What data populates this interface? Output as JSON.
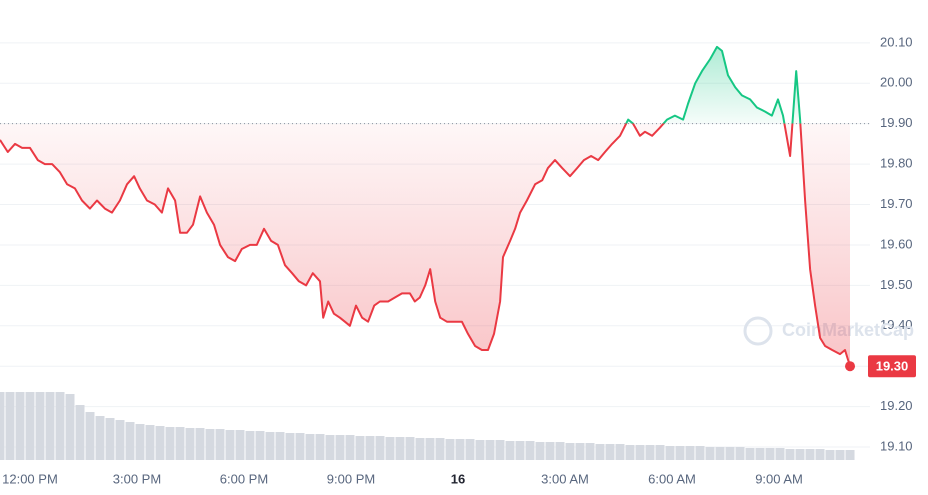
{
  "chart_data": {
    "type": "line",
    "x": [
      -0.84,
      -0.62,
      -0.42,
      -0.22,
      0,
      0.22,
      0.42,
      0.62,
      0.84,
      1.04,
      1.26,
      1.46,
      1.68,
      1.88,
      2.1,
      2.3,
      2.52,
      2.72,
      2.92,
      3.08,
      3.28,
      3.5,
      3.7,
      3.87,
      4.07,
      4.21,
      4.4,
      4.57,
      4.77,
      4.96,
      5.16,
      5.33,
      5.55,
      5.75,
      5.94,
      6.17,
      6.36,
      6.56,
      6.76,
      6.95,
      7.15,
      7.35,
      7.54,
      7.74,
      7.93,
      8.13,
      8.22,
      8.36,
      8.52,
      8.69,
      8.83,
      8.97,
      9.14,
      9.31,
      9.48,
      9.65,
      9.81,
      10.04,
      10.23,
      10.43,
      10.65,
      10.79,
      10.93,
      11.08,
      11.22,
      11.36,
      11.5,
      11.69,
      11.92,
      12.11,
      12.28,
      12.48,
      12.67,
      12.84,
      13.01,
      13.18,
      13.26,
      13.46,
      13.6,
      13.74,
      13.93,
      14.16,
      14.36,
      14.52,
      14.72,
      14.92,
      15.14,
      15.34,
      15.53,
      15.73,
      15.93,
      16.12,
      16.32,
      16.54,
      16.77,
      16.91,
      17.1,
      17.24,
      17.44,
      17.66,
      17.86,
      18.08,
      18.31,
      18.45,
      18.65,
      18.84,
      19.07,
      19.26,
      19.4,
      19.57,
      19.77,
      19.96,
      20.19,
      20.38,
      20.61,
      20.8,
      20.97,
      21.11,
      21.31,
      21.48,
      21.59,
      21.73,
      21.87,
      22.01,
      22.15,
      22.29,
      22.49,
      22.71,
      22.85,
      22.99
    ],
    "values": [
      19.86,
      19.83,
      19.85,
      19.84,
      19.84,
      19.81,
      19.8,
      19.8,
      19.78,
      19.75,
      19.74,
      19.71,
      19.69,
      19.71,
      19.69,
      19.68,
      19.71,
      19.75,
      19.77,
      19.74,
      19.71,
      19.7,
      19.68,
      19.74,
      19.71,
      19.63,
      19.63,
      19.65,
      19.72,
      19.68,
      19.65,
      19.6,
      19.57,
      19.56,
      19.59,
      19.6,
      19.6,
      19.64,
      19.61,
      19.6,
      19.55,
      19.53,
      19.51,
      19.5,
      19.53,
      19.51,
      19.42,
      19.46,
      19.43,
      19.42,
      19.41,
      19.4,
      19.45,
      19.42,
      19.41,
      19.45,
      19.46,
      19.46,
      19.47,
      19.48,
      19.48,
      19.46,
      19.47,
      19.5,
      19.54,
      19.46,
      19.42,
      19.41,
      19.41,
      19.41,
      19.38,
      19.35,
      19.34,
      19.34,
      19.38,
      19.46,
      19.57,
      19.61,
      19.64,
      19.68,
      19.71,
      19.75,
      19.76,
      19.79,
      19.81,
      19.79,
      19.77,
      19.79,
      19.81,
      19.82,
      19.81,
      19.83,
      19.85,
      19.87,
      19.91,
      19.9,
      19.87,
      19.88,
      19.87,
      19.89,
      19.91,
      19.92,
      19.91,
      19.95,
      20.0,
      20.03,
      20.06,
      20.09,
      20.08,
      20.02,
      19.99,
      19.97,
      19.96,
      19.94,
      19.93,
      19.92,
      19.96,
      19.92,
      19.82,
      20.03,
      19.91,
      19.71,
      19.54,
      19.45,
      19.37,
      19.35,
      19.34,
      19.33,
      19.34,
      19.3
    ],
    "baseline": 19.9,
    "colors": {
      "up": "#16c784",
      "down": "#ea3943"
    },
    "xlim": [
      -0.84,
      23.55
    ],
    "xticks": [
      {
        "value": 0,
        "label": "12:00 PM"
      },
      {
        "value": 3,
        "label": "3:00 PM"
      },
      {
        "value": 6,
        "label": "6:00 PM"
      },
      {
        "value": 9,
        "label": "9:00 PM"
      },
      {
        "value": 12,
        "label": "16",
        "bold": true
      },
      {
        "value": 15,
        "label": "3:00 AM"
      },
      {
        "value": 18,
        "label": "6:00 AM"
      },
      {
        "value": 21,
        "label": "9:00 AM"
      }
    ],
    "ylim": [
      19.063,
      20.206
    ],
    "yticks": [
      {
        "value": 19.1,
        "label": "19.10"
      },
      {
        "value": 19.2,
        "label": "19.20"
      },
      {
        "value": 19.3,
        "label": "19.30"
      },
      {
        "value": 19.4,
        "label": "19.40"
      },
      {
        "value": 19.5,
        "label": "19.50"
      },
      {
        "value": 19.6,
        "label": "19.60"
      },
      {
        "value": 19.7,
        "label": "19.70"
      },
      {
        "value": 19.8,
        "label": "19.80"
      },
      {
        "value": 19.9,
        "label": "19.90"
      },
      {
        "value": 20.0,
        "label": "20.00"
      },
      {
        "value": 20.1,
        "label": "20.10"
      }
    ],
    "grid": true,
    "last_price": {
      "value": 19.3,
      "label": "19.30"
    },
    "watermark": "CoinMarketCap",
    "volume": {
      "color": "#d5d9e0",
      "ylim": [
        0,
        70
      ],
      "values": [
        68,
        68,
        68,
        68,
        68,
        68,
        68,
        66,
        55,
        48,
        44,
        42,
        40,
        38,
        36,
        35,
        34,
        33,
        33,
        32,
        32,
        31,
        31,
        30,
        30,
        29,
        29,
        28,
        28,
        27,
        27,
        26,
        26,
        25,
        25,
        25,
        24,
        24,
        24,
        23,
        23,
        23,
        22,
        22,
        22,
        21,
        21,
        21,
        20,
        20,
        20,
        19,
        19,
        19,
        18,
        18,
        18,
        17,
        17,
        17,
        16,
        16,
        16,
        15,
        15,
        15,
        15,
        14,
        14,
        14,
        14,
        13,
        13,
        13,
        13,
        12,
        12,
        12,
        12,
        11,
        11,
        11,
        11,
        10,
        10,
        10
      ]
    }
  }
}
